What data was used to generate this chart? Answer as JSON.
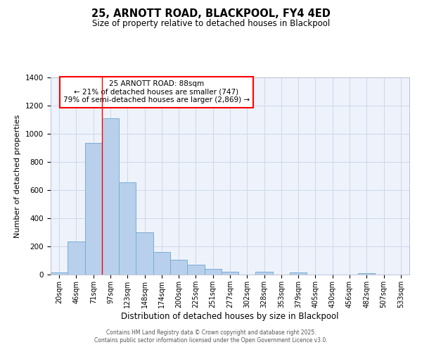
{
  "title": "25, ARNOTT ROAD, BLACKPOOL, FY4 4ED",
  "subtitle": "Size of property relative to detached houses in Blackpool",
  "xlabel": "Distribution of detached houses by size in Blackpool",
  "ylabel": "Number of detached properties",
  "bar_labels": [
    "20sqm",
    "46sqm",
    "71sqm",
    "97sqm",
    "123sqm",
    "148sqm",
    "174sqm",
    "200sqm",
    "225sqm",
    "251sqm",
    "277sqm",
    "302sqm",
    "328sqm",
    "353sqm",
    "379sqm",
    "405sqm",
    "430sqm",
    "456sqm",
    "482sqm",
    "507sqm",
    "533sqm"
  ],
  "bar_values": [
    13,
    235,
    935,
    1110,
    655,
    298,
    160,
    107,
    70,
    40,
    22,
    0,
    20,
    0,
    13,
    0,
    0,
    0,
    8,
    0,
    0
  ],
  "bar_color": "#b8d0eb",
  "bar_edge_color": "#7aadd4",
  "grid_color": "#ccd8ec",
  "background_color": "#eef2fa",
  "ylim": [
    0,
    1400
  ],
  "yticks": [
    0,
    200,
    400,
    600,
    800,
    1000,
    1200,
    1400
  ],
  "red_line_x": 3.0,
  "annotation_text": "25 ARNOTT ROAD: 88sqm\n← 21% of detached houses are smaller (747)\n79% of semi-detached houses are larger (2,869) →",
  "footer1": "Contains HM Land Registry data © Crown copyright and database right 2025.",
  "footer2": "Contains public sector information licensed under the Open Government Licence v3.0."
}
